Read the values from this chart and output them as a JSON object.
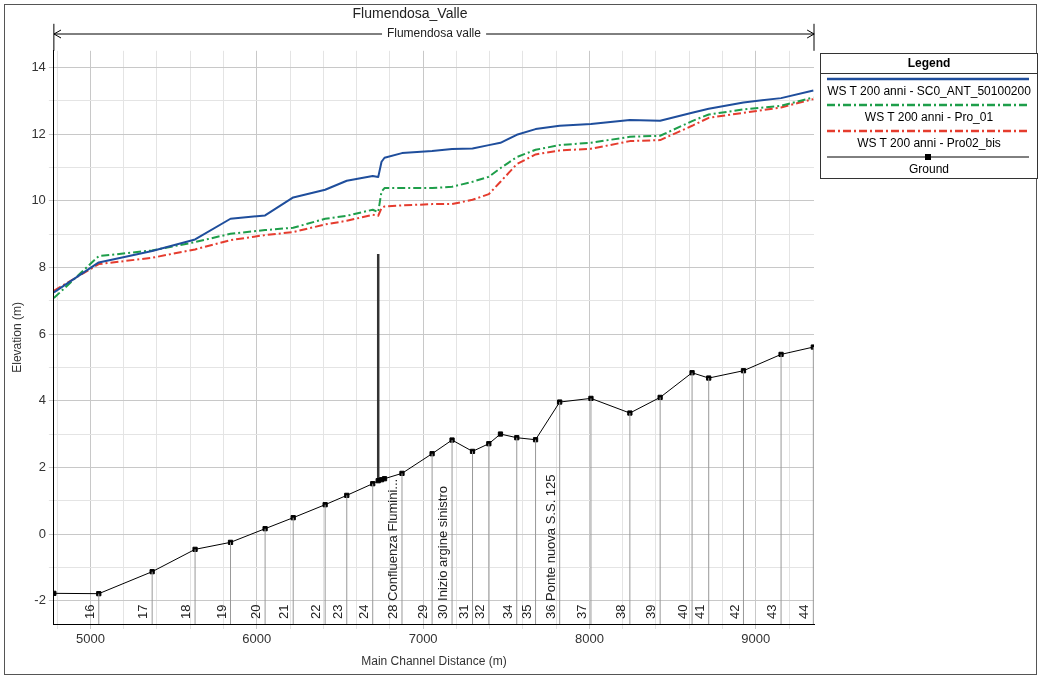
{
  "chart_data": {
    "type": "line",
    "title": "Flumendosa_Valle",
    "xlabel": "Main Channel Distance (m)",
    "ylabel": "Elevation (m)",
    "legend_title": "Legend",
    "legend": "right",
    "grid": true,
    "x": [
      4780,
      5050,
      5371,
      5629,
      5842,
      6050,
      6219,
      6411,
      6541,
      6697,
      6730,
      6750,
      6768,
      6873,
      7054,
      7174,
      7297,
      7395,
      7465,
      7563,
      7676,
      7821,
      8009,
      8243,
      8425,
      8617,
      8717,
      8926,
      9152,
      9346
    ],
    "series": [
      {
        "name": "WS  T 200 anni - SC0_ANT_50100200",
        "color": "#1f4e9c",
        "line_style": "solid",
        "marker": "none",
        "values": [
          7.25,
          8.15,
          8.49,
          8.84,
          9.46,
          9.56,
          10.1,
          10.33,
          10.6,
          10.74,
          10.71,
          11.17,
          11.29,
          11.43,
          11.49,
          11.55,
          11.57,
          11.67,
          11.74,
          11.98,
          12.15,
          12.25,
          12.3,
          12.42,
          12.4,
          12.64,
          12.76,
          12.95,
          13.08,
          13.31
        ]
      },
      {
        "name": "WS  T 200 anni - Pro_01",
        "color": "#1e9e4a",
        "line_style": "dashed",
        "marker": "none",
        "values": [
          7.08,
          8.34,
          8.51,
          8.76,
          9.01,
          9.12,
          9.19,
          9.46,
          9.55,
          9.73,
          9.66,
          10.28,
          10.38,
          10.38,
          10.38,
          10.42,
          10.57,
          10.72,
          10.98,
          11.31,
          11.53,
          11.67,
          11.74,
          11.92,
          11.95,
          12.39,
          12.59,
          12.74,
          12.85,
          13.1
        ]
      },
      {
        "name": "WS  T 200 anni - Pro02_bis",
        "color": "#e53c2e",
        "line_style": "dashed",
        "marker": "none",
        "values": [
          7.3,
          8.1,
          8.29,
          8.54,
          8.82,
          8.97,
          9.06,
          9.29,
          9.4,
          9.58,
          9.55,
          9.78,
          9.83,
          9.86,
          9.9,
          9.9,
          10.03,
          10.2,
          10.57,
          11.1,
          11.39,
          11.51,
          11.56,
          11.79,
          11.82,
          12.25,
          12.49,
          12.64,
          12.8,
          13.05
        ]
      },
      {
        "name": "Ground",
        "color": "#000000",
        "line_style": "solid",
        "marker": "square",
        "values": [
          -1.78,
          -1.79,
          -1.13,
          -0.46,
          -0.25,
          0.16,
          0.49,
          0.88,
          1.16,
          1.51,
          1.6,
          1.63,
          1.66,
          1.82,
          2.41,
          2.82,
          2.48,
          2.71,
          3.0,
          2.89,
          2.83,
          3.96,
          4.07,
          3.63,
          4.1,
          4.84,
          4.68,
          4.9,
          5.39,
          5.61
        ]
      },
      {
        "color": "#333333",
        "line_style": "solid",
        "marker": "none",
        "x": [
          6730,
          6730
        ],
        "values": [
          1.6,
          8.4
        ]
      }
    ],
    "xlim": [
      4780,
      9350
    ],
    "xticks": [
      {
        "value": 4800,
        "label": null
      },
      5000,
      {
        "value": 5200,
        "label": null
      },
      {
        "value": 5400,
        "label": null
      },
      {
        "value": 5600,
        "label": null
      },
      {
        "value": 5800,
        "label": null
      },
      6000,
      {
        "value": 6200,
        "label": null
      },
      {
        "value": 6400,
        "label": null
      },
      {
        "value": 6600,
        "label": null
      },
      {
        "value": 6800,
        "label": null
      },
      7000,
      {
        "value": 7200,
        "label": null
      },
      {
        "value": 7400,
        "label": null
      },
      {
        "value": 7600,
        "label": null
      },
      {
        "value": 7800,
        "label": null
      },
      8000,
      {
        "value": 8200,
        "label": null
      },
      {
        "value": 8400,
        "label": null
      },
      {
        "value": 8600,
        "label": null
      },
      {
        "value": 8800,
        "label": null
      },
      9000,
      {
        "value": 9200,
        "label": null
      }
    ],
    "ylim": [
      -2.7,
      14.5
    ],
    "yticks": [
      -2,
      {
        "value": -1,
        "label": null
      },
      0,
      {
        "value": 1,
        "label": null
      },
      2,
      {
        "value": 3,
        "label": null
      },
      4,
      {
        "value": 5,
        "label": null
      },
      6,
      {
        "value": 7,
        "label": null
      },
      8,
      {
        "value": 9,
        "label": null
      },
      10,
      {
        "value": 11,
        "label": null
      },
      12,
      {
        "value": 13,
        "label": null
      },
      14
    ],
    "annotations": [
      "Flumendosa valle",
      {
        "text": "16",
        "x": 5050,
        "y": -1.79
      },
      {
        "text": "17",
        "x": 5371,
        "y": -1.13
      },
      {
        "text": "18",
        "x": 5629,
        "y": -0.46
      },
      {
        "text": "19",
        "x": 5842,
        "y": -0.25
      },
      {
        "text": "20",
        "x": 6050,
        "y": 0.16
      },
      {
        "text": "21",
        "x": 6219,
        "y": 0.49
      },
      {
        "text": "22",
        "x": 6411,
        "y": 0.88
      },
      {
        "text": "23",
        "x": 6541,
        "y": 1.16
      },
      {
        "text": "24",
        "x": 6697,
        "y": 1.51
      },
      {
        "text": "28 Confluenza Flumini...",
        "x": 6873,
        "y": 1.82
      },
      {
        "text": "29",
        "x": 7054,
        "y": 2.41
      },
      {
        "text": "30 Inizio argine sinistro",
        "x": 7174,
        "y": 2.82
      },
      {
        "text": "31",
        "x": 7297,
        "y": 2.48
      },
      {
        "text": "32",
        "x": 7395,
        "y": 2.71
      },
      {
        "text": "34",
        "x": 7563,
        "y": 2.89
      },
      {
        "text": "35",
        "x": 7676,
        "y": 2.83
      },
      {
        "text": "36 Ponte nuova S.S. 125",
        "x": 7821,
        "y": 3.96
      },
      {
        "text": "37",
        "x": 8009,
        "y": 4.07
      },
      {
        "text": "38",
        "x": 8243,
        "y": 3.63
      },
      {
        "text": "39",
        "x": 8425,
        "y": 4.1
      },
      {
        "text": "40",
        "x": 8617,
        "y": 4.84
      },
      {
        "text": "41",
        "x": 8717,
        "y": 4.68
      },
      {
        "text": "42",
        "x": 8926,
        "y": 4.9
      },
      {
        "text": "43",
        "x": 9152,
        "y": 5.39
      },
      {
        "text": "44",
        "x": 9346,
        "y": 5.61
      }
    ]
  }
}
